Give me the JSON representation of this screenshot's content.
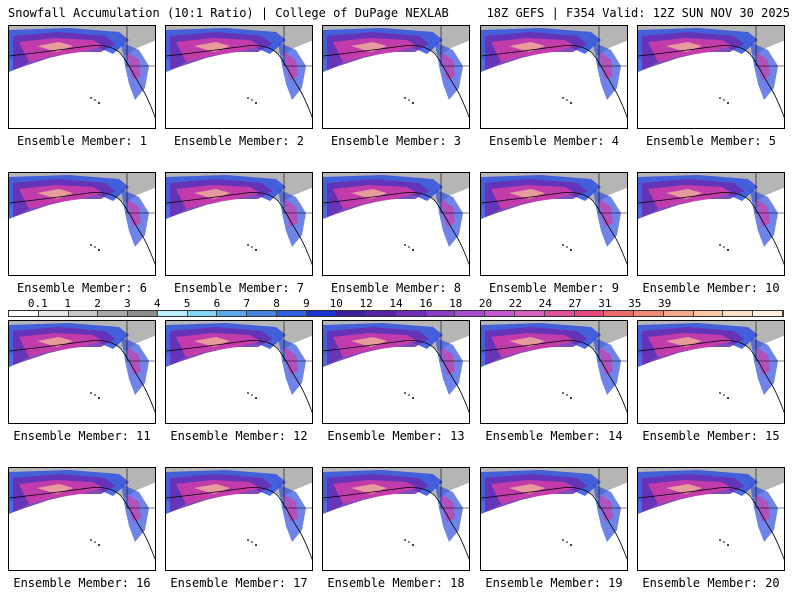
{
  "header": {
    "title_left": "Snowfall Accumulation (10:1 Ratio) | College of DuPage NEXLAB",
    "title_right": "18Z GEFS | F354 Valid: 12Z SUN NOV 30 2025"
  },
  "members": [
    {
      "label": "Ensemble Member: 1"
    },
    {
      "label": "Ensemble Member: 2"
    },
    {
      "label": "Ensemble Member: 3"
    },
    {
      "label": "Ensemble Member: 4"
    },
    {
      "label": "Ensemble Member: 5"
    },
    {
      "label": "Ensemble Member: 6"
    },
    {
      "label": "Ensemble Member: 7"
    },
    {
      "label": "Ensemble Member: 8"
    },
    {
      "label": "Ensemble Member: 9"
    },
    {
      "label": "Ensemble Member: 10"
    },
    {
      "label": "Ensemble Member: 11"
    },
    {
      "label": "Ensemble Member: 12"
    },
    {
      "label": "Ensemble Member: 13"
    },
    {
      "label": "Ensemble Member: 14"
    },
    {
      "label": "Ensemble Member: 15"
    },
    {
      "label": "Ensemble Member: 16"
    },
    {
      "label": "Ensemble Member: 17"
    },
    {
      "label": "Ensemble Member: 18"
    },
    {
      "label": "Ensemble Member: 19"
    },
    {
      "label": "Ensemble Member: 20"
    }
  ],
  "colorbar": {
    "ticks": [
      "0.1",
      "1",
      "2",
      "3",
      "4",
      "5",
      "6",
      "7",
      "8",
      "9",
      "10",
      "12",
      "14",
      "16",
      "18",
      "20",
      "22",
      "24",
      "27",
      "31",
      "35",
      "39"
    ],
    "colors": [
      "#ffffff",
      "#e6e6e6",
      "#c8c8c8",
      "#a8a8a8",
      "#8c8c8c",
      "#bfefff",
      "#7fd6f5",
      "#5aa8f0",
      "#4682e6",
      "#2d5fe0",
      "#1b34d4",
      "#3a1f9e",
      "#5522a8",
      "#7030b8",
      "#8a3ec8",
      "#a94ad0",
      "#c855d4",
      "#d85fc0",
      "#e0509a",
      "#e44a7a",
      "#ea6a6a",
      "#f08a7a",
      "#f4aa90",
      "#f8c8a8",
      "#fbe0c8",
      "#fff0e0"
    ]
  },
  "map_colors": {
    "ocean": "#ffffff",
    "land_gray": "#b5b5b5",
    "blue": "#3050e0",
    "purple": "#6a2cb0",
    "magenta": "#cc3ca8",
    "peach": "#f0b49a"
  }
}
